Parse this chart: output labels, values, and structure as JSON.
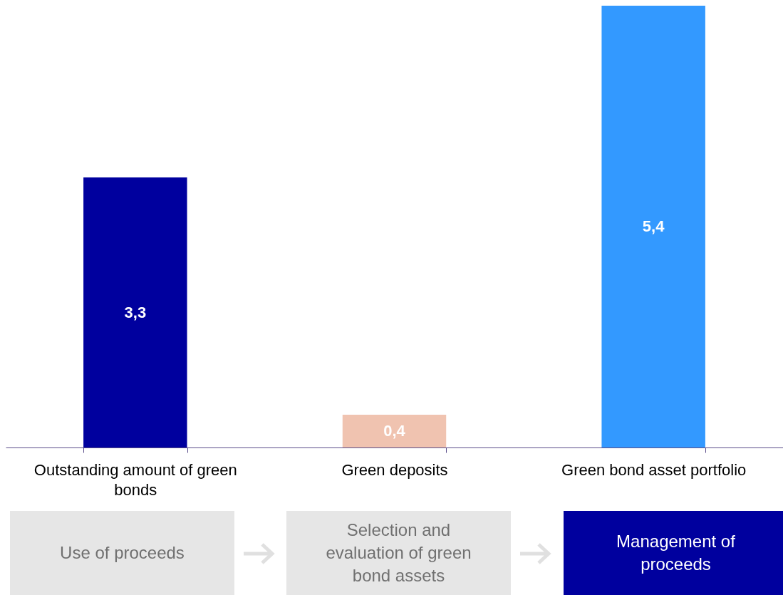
{
  "chart_data": {
    "type": "bar",
    "categories": [
      "Outstanding amount of green bonds",
      "Green deposits",
      "Green bond asset portfolio"
    ],
    "values": [
      3.3,
      0.4,
      5.4
    ],
    "colors": [
      "#00009e",
      "#f0c3b0",
      "#3399ff"
    ],
    "value_labels": [
      "3,3",
      "0,4",
      "5,4"
    ],
    "annotations": [
      "Use of proceeds",
      "Selection and evaluation of green bond assets",
      "Management of proceeds"
    ],
    "legend": false
  }
}
